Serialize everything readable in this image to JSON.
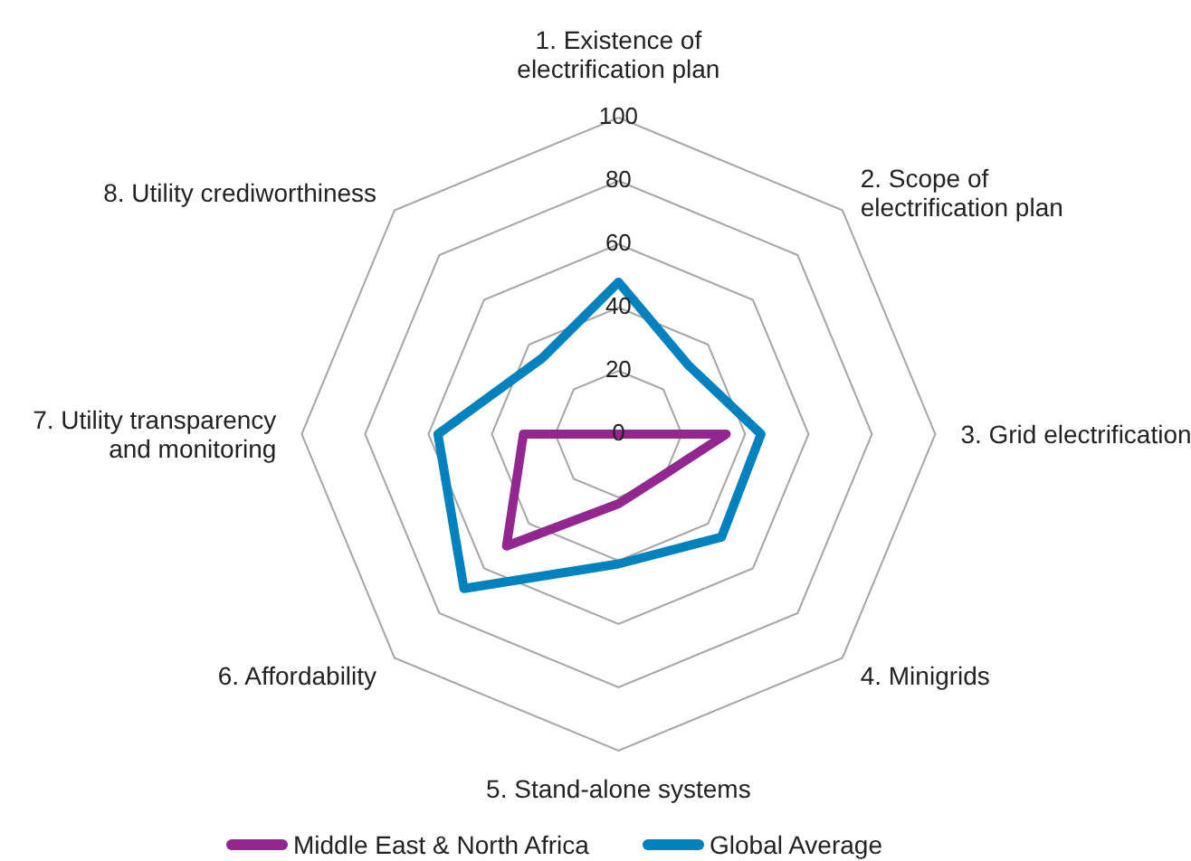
{
  "chart_data": {
    "type": "radar",
    "categories": [
      "1. Existence of\nelectrification plan",
      "2. Scope of\nelectrification plan",
      "3. Grid electrification",
      "4. Minigrids",
      "5. Stand-alone systems",
      "6. Affordability",
      "7. Utility transparency\nand monitoring",
      "8. Utility crediworthiness"
    ],
    "series": [
      {
        "name": "Middle East & North Africa",
        "color": "#92278f",
        "values": [
          0,
          0,
          34,
          19,
          22,
          50,
          30,
          0
        ]
      },
      {
        "name": "Global Average",
        "color": "#0082bf",
        "values": [
          48,
          31,
          45,
          46,
          41,
          69,
          57,
          34
        ]
      }
    ],
    "ylim": [
      0,
      100
    ],
    "yticks": [
      0,
      20,
      40,
      60,
      80,
      100
    ],
    "grid": true,
    "legend": "bottom"
  }
}
